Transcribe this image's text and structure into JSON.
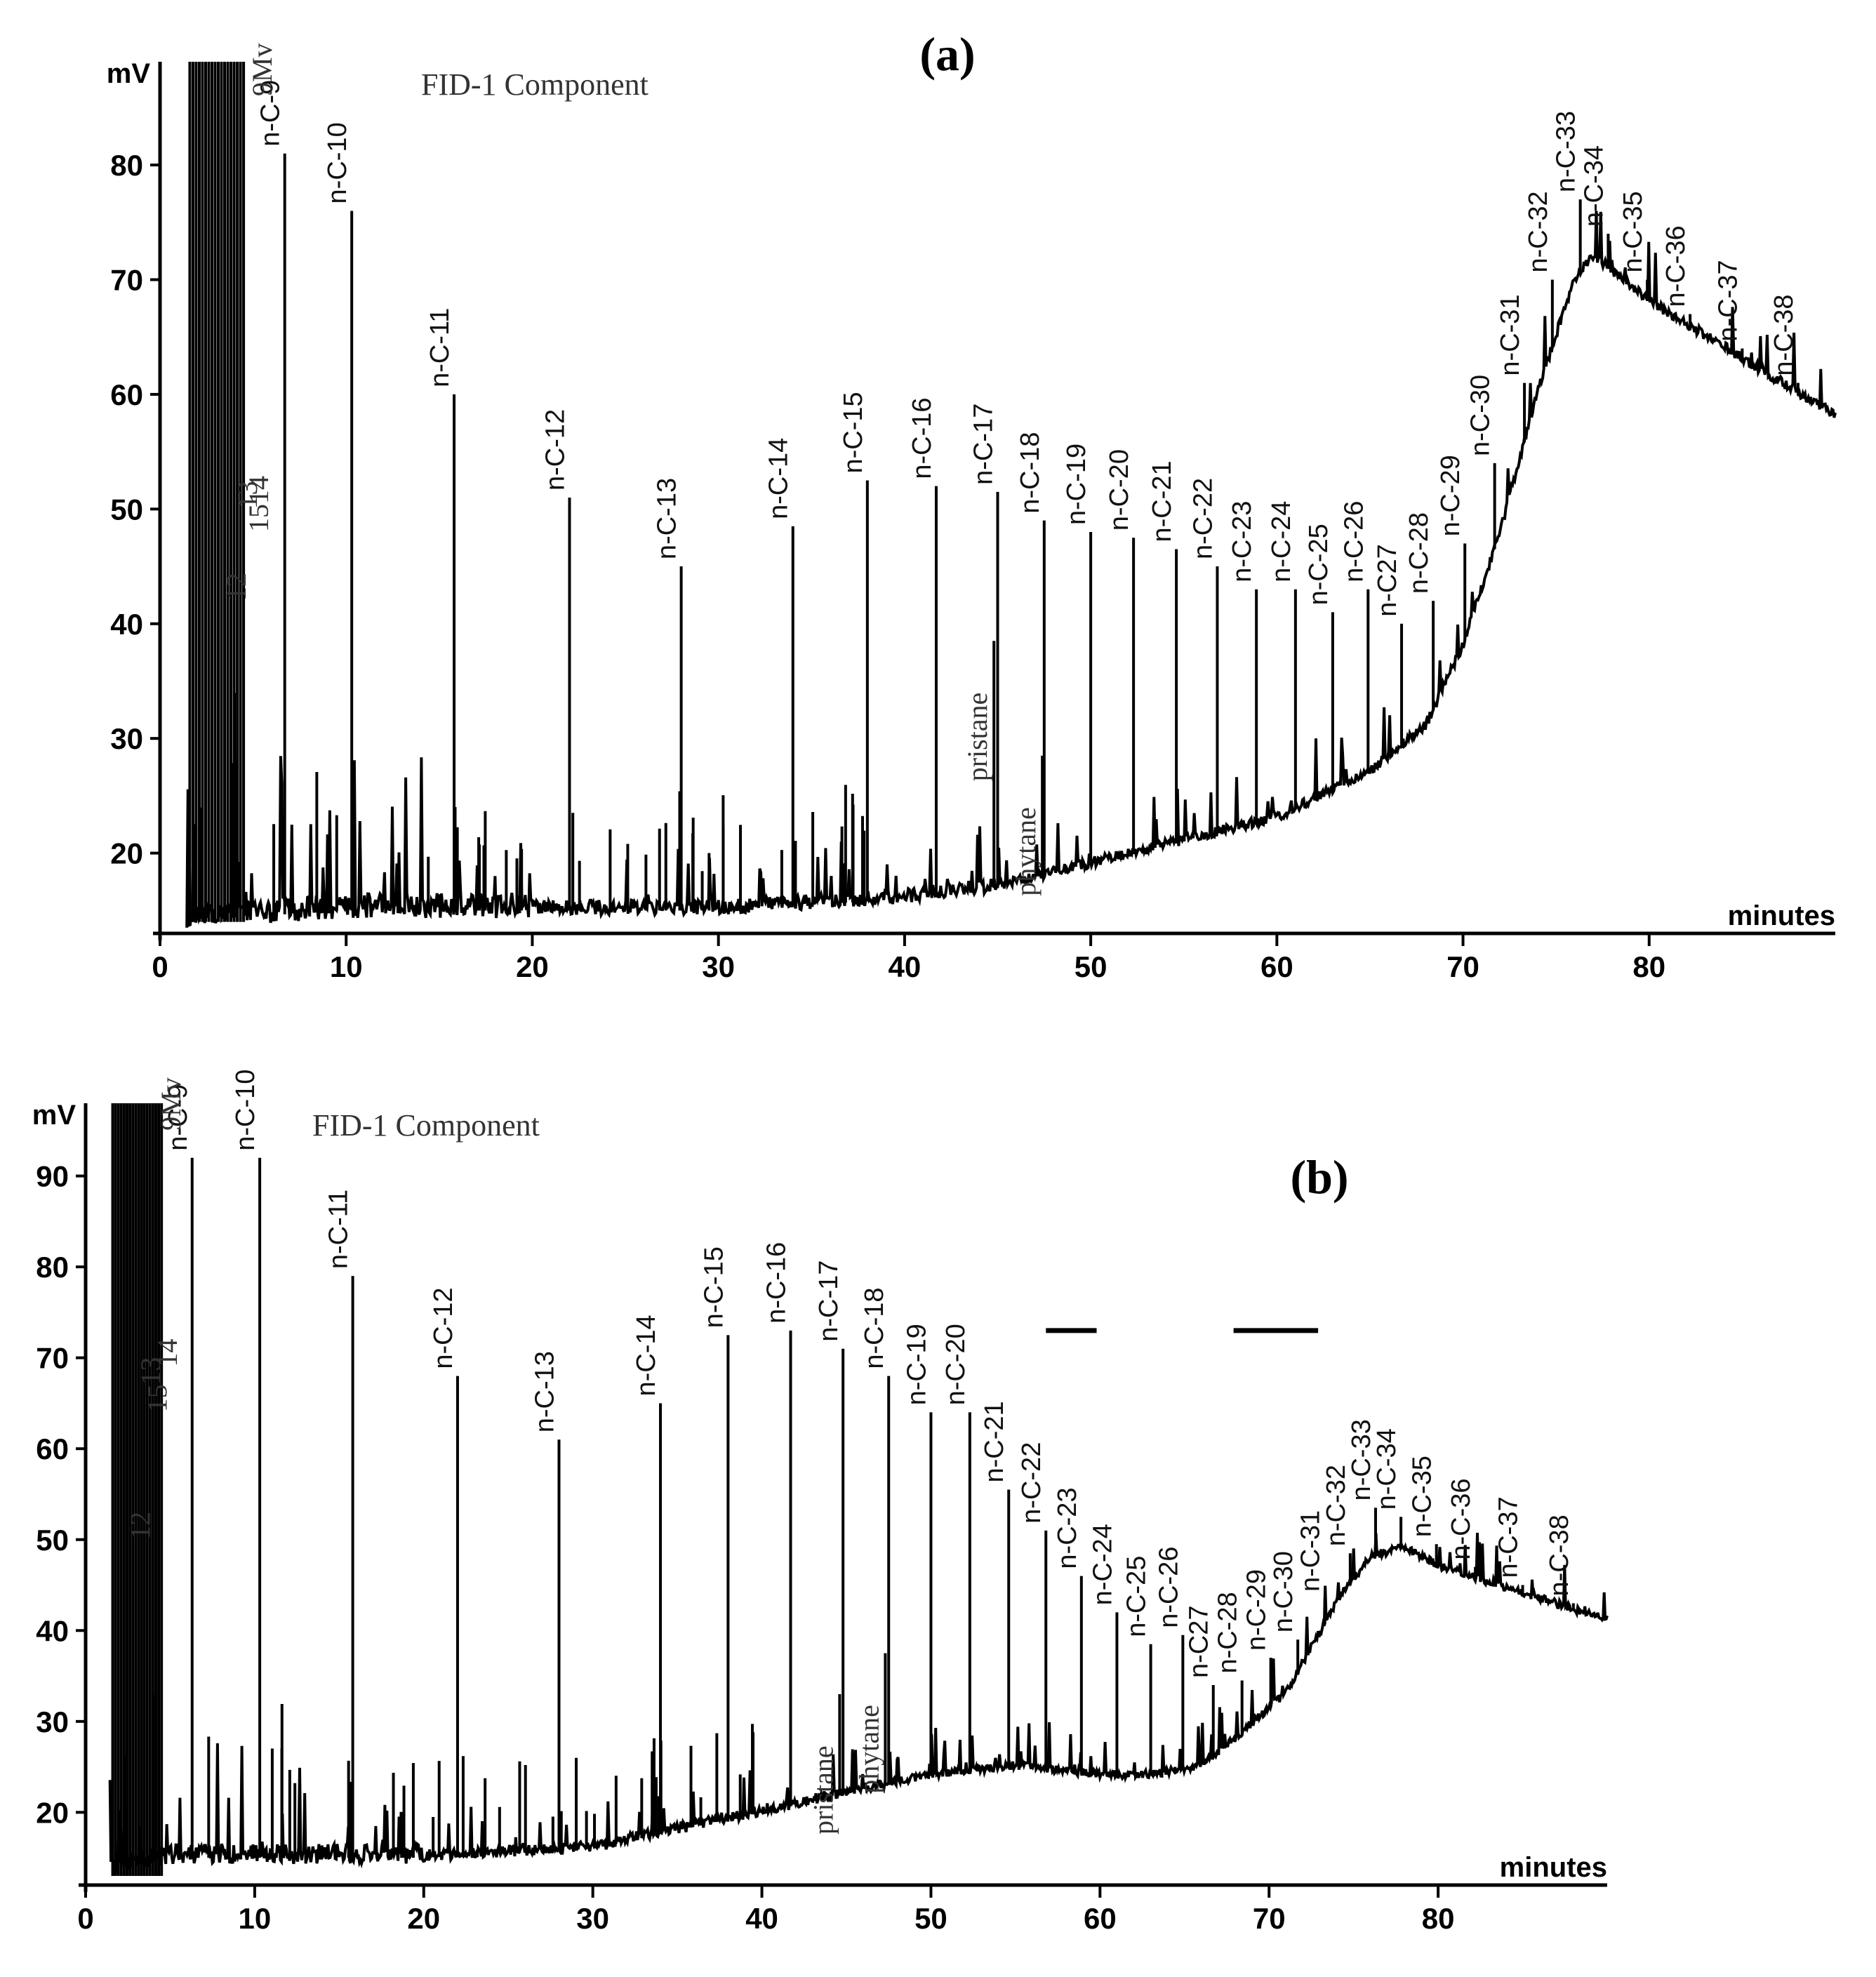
{
  "chart_data": [
    {
      "id": "a",
      "type": "line",
      "title": "(a)",
      "header": "FID-1    Component",
      "ylabel": "mV",
      "xlabel": "minutes",
      "xlim": [
        0,
        90
      ],
      "ylim": [
        13,
        89
      ],
      "xticks": [
        0,
        10,
        20,
        30,
        40,
        50,
        60,
        70,
        80
      ],
      "yticks": [
        20,
        30,
        40,
        50,
        60,
        70,
        80
      ],
      "baseline": [
        [
          0,
          14
        ],
        [
          10,
          15
        ],
        [
          20,
          15
        ],
        [
          30,
          15
        ],
        [
          40,
          16
        ],
        [
          45,
          17
        ],
        [
          50,
          19
        ],
        [
          55,
          21
        ],
        [
          60,
          23
        ],
        [
          65,
          27
        ],
        [
          68,
          31
        ],
        [
          70,
          38
        ],
        [
          72,
          48
        ],
        [
          74,
          60
        ],
        [
          76,
          70
        ],
        [
          77,
          72
        ],
        [
          80,
          68
        ],
        [
          85,
          63
        ],
        [
          90,
          58
        ]
      ],
      "peaks": [
        {
          "label": "n-C-9",
          "x": 6.7,
          "y": 81
        },
        {
          "label": "n-C-10",
          "x": 10.3,
          "y": 76
        },
        {
          "label": "n-C-11",
          "x": 15.8,
          "y": 60
        },
        {
          "label": "n-C-12",
          "x": 22.0,
          "y": 51
        },
        {
          "label": "n-C-13",
          "x": 28.0,
          "y": 45
        },
        {
          "label": "n-C-14",
          "x": 34.0,
          "y": 48.5
        },
        {
          "label": "n-C-15",
          "x": 38.0,
          "y": 52.5
        },
        {
          "label": "n-C-16",
          "x": 41.7,
          "y": 52
        },
        {
          "label": "n-C-17",
          "x": 45.0,
          "y": 51.5
        },
        {
          "label": "n-C-18",
          "x": 47.5,
          "y": 49
        },
        {
          "label": "n-C-19",
          "x": 50.0,
          "y": 48
        },
        {
          "label": "n-C-20",
          "x": 52.3,
          "y": 47.5
        },
        {
          "label": "n-C-21",
          "x": 54.6,
          "y": 46.5
        },
        {
          "label": "n-C-22",
          "x": 56.8,
          "y": 45
        },
        {
          "label": "n-C-23",
          "x": 58.9,
          "y": 43
        },
        {
          "label": "n-C-24",
          "x": 61.0,
          "y": 43
        },
        {
          "label": "n-C-25",
          "x": 63.0,
          "y": 41
        },
        {
          "label": "n-C-26",
          "x": 64.9,
          "y": 43
        },
        {
          "label": "n-C27",
          "x": 66.7,
          "y": 40
        },
        {
          "label": "n-C-28",
          "x": 68.4,
          "y": 42
        },
        {
          "label": "n-C-29",
          "x": 70.1,
          "y": 47
        },
        {
          "label": "n-C-30",
          "x": 71.7,
          "y": 54
        },
        {
          "label": "n-C-31",
          "x": 73.3,
          "y": 61
        },
        {
          "label": "n-C-32",
          "x": 74.8,
          "y": 70
        },
        {
          "label": "n-C-33",
          "x": 76.3,
          "y": 77
        },
        {
          "label": "n-C-34",
          "x": 77.8,
          "y": 74
        },
        {
          "label": "n-C-35",
          "x": 79.9,
          "y": 70
        },
        {
          "label": "n-C-36",
          "x": 82.2,
          "y": 67
        },
        {
          "label": "n-C-37",
          "x": 85.0,
          "y": 64
        },
        {
          "label": "n-C-38",
          "x": 88.0,
          "y": 61
        }
      ],
      "isoprenoids": [
        {
          "label": "pristane",
          "x": 44.8,
          "y": 38.5
        },
        {
          "label": "phytane",
          "x": 47.4,
          "y": 28.5
        }
      ],
      "early_labels": [
        {
          "label": "9Mv",
          "x": 6.0,
          "y": 86
        },
        {
          "label": "13",
          "x": 5.2,
          "y": 50
        },
        {
          "label": "1514",
          "x": 5.8,
          "y": 48
        },
        {
          "label": "12",
          "x": 4.6,
          "y": 42
        }
      ]
    },
    {
      "id": "b",
      "type": "line",
      "title": "(b)",
      "header": "FID-1    Component",
      "ylabel": "mV",
      "xlabel": "minutes",
      "xlim": [
        0,
        90
      ],
      "ylim": [
        12,
        98
      ],
      "xticks": [
        0,
        10,
        20,
        30,
        40,
        50,
        60,
        70,
        80
      ],
      "yticks": [
        20,
        30,
        40,
        50,
        60,
        70,
        80,
        90
      ],
      "baseline": [
        [
          0,
          13
        ],
        [
          5,
          15
        ],
        [
          10,
          15
        ],
        [
          20,
          15
        ],
        [
          30,
          16
        ],
        [
          40,
          20
        ],
        [
          50,
          24
        ],
        [
          55,
          25
        ],
        [
          60,
          24
        ],
        [
          63,
          24
        ],
        [
          66,
          25
        ],
        [
          68,
          28
        ],
        [
          71,
          33
        ],
        [
          74,
          43
        ],
        [
          76,
          48
        ],
        [
          78,
          49
        ],
        [
          80,
          47
        ],
        [
          85,
          44
        ],
        [
          90,
          41
        ]
      ],
      "peaks": [
        {
          "label": "n-C-9",
          "x": 6.3,
          "y": 92
        },
        {
          "label": "n-C-10",
          "x": 10.3,
          "y": 92
        },
        {
          "label": "n-C-11",
          "x": 15.8,
          "y": 79
        },
        {
          "label": "n-C-12",
          "x": 22.0,
          "y": 68
        },
        {
          "label": "n-C-13",
          "x": 28.0,
          "y": 61
        },
        {
          "label": "n-C-14",
          "x": 34.0,
          "y": 65
        },
        {
          "label": "n-C-15",
          "x": 38.0,
          "y": 72.5
        },
        {
          "label": "n-C-16",
          "x": 41.7,
          "y": 73
        },
        {
          "label": "n-C-17",
          "x": 44.8,
          "y": 71
        },
        {
          "label": "n-C-18",
          "x": 47.5,
          "y": 68
        },
        {
          "label": "n-C-19",
          "x": 50.0,
          "y": 64
        },
        {
          "label": "n-C-20",
          "x": 52.3,
          "y": 64
        },
        {
          "label": "n-C-21",
          "x": 54.6,
          "y": 55.5
        },
        {
          "label": "n-C-22",
          "x": 56.8,
          "y": 51
        },
        {
          "label": "n-C-23",
          "x": 58.9,
          "y": 46
        },
        {
          "label": "n-C-24",
          "x": 61.0,
          "y": 42
        },
        {
          "label": "n-C-25",
          "x": 63.0,
          "y": 38.5
        },
        {
          "label": "n-C-26",
          "x": 64.9,
          "y": 39.5
        },
        {
          "label": "n-C27",
          "x": 66.7,
          "y": 34
        },
        {
          "label": "n-C-28",
          "x": 68.4,
          "y": 34.5
        },
        {
          "label": "n-C-29",
          "x": 70.1,
          "y": 37
        },
        {
          "label": "n-C-30",
          "x": 71.7,
          "y": 39
        },
        {
          "label": "n-C-31",
          "x": 73.3,
          "y": 43.5
        },
        {
          "label": "n-C-32",
          "x": 74.8,
          "y": 48.5
        },
        {
          "label": "n-C-33",
          "x": 76.3,
          "y": 53.5
        },
        {
          "label": "n-C-34",
          "x": 77.8,
          "y": 52.5
        },
        {
          "label": "n-C-35",
          "x": 79.9,
          "y": 49.5
        },
        {
          "label": "n-C-36",
          "x": 82.2,
          "y": 47
        },
        {
          "label": "n-C-37",
          "x": 85.0,
          "y": 45
        },
        {
          "label": "n-C-38",
          "x": 88.0,
          "y": 43
        }
      ],
      "isoprenoids": [
        {
          "label": "pristane",
          "x": 44.6,
          "y": 33
        },
        {
          "label": "phytane",
          "x": 47.3,
          "y": 37.5
        }
      ],
      "early_labels": [
        {
          "label": "9Mv",
          "x": 5.6,
          "y": 95
        },
        {
          "label": "13",
          "x": 4.4,
          "y": 67
        },
        {
          "label": "14",
          "x": 5.4,
          "y": 69
        },
        {
          "label": "15",
          "x": 4.8,
          "y": 64
        },
        {
          "label": "12",
          "x": 3.8,
          "y": 50
        }
      ],
      "markers": [
        {
          "x1": 56.8,
          "x2": 59.8,
          "y": 73
        },
        {
          "x1": 67.9,
          "x2": 72.9,
          "y": 73
        }
      ]
    }
  ]
}
